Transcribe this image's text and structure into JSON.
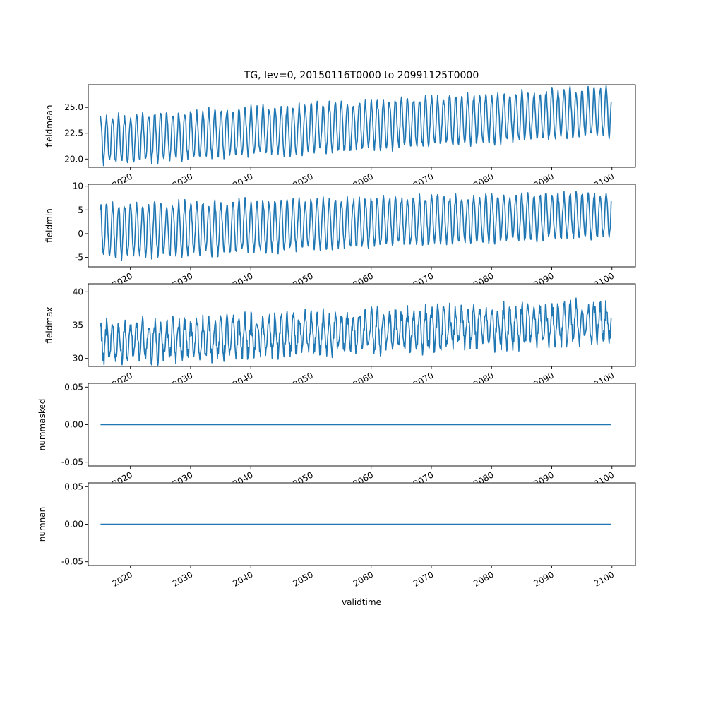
{
  "chart_data": {
    "type": "line",
    "title": "TG, lev=0, 20150116T0000 to 20991125T0000",
    "xlabel": "validtime",
    "x_ticks": [
      "2020",
      "2030",
      "2040",
      "2050",
      "2060",
      "2070",
      "2080",
      "2090",
      "2100"
    ],
    "x_range": [
      2015.04,
      2099.9
    ],
    "line_color": "#1f77b4",
    "grid": false,
    "panels": [
      {
        "ylabel": "fieldmean",
        "y_ticks": [
          "20.0",
          "22.5",
          "25.0"
        ],
        "ylim": [
          19.2,
          27.2
        ],
        "series": {
          "kind": "seasonal",
          "start": 2015.04,
          "end": 2099.9,
          "center_start": 21.8,
          "center_end": 24.6,
          "amp_start": 2.2,
          "amp_end": 2.3
        }
      },
      {
        "ylabel": "fieldmin",
        "y_ticks": [
          "-5",
          "0",
          "5",
          "10"
        ],
        "ylim": [
          -7.0,
          10.4
        ],
        "series": {
          "kind": "seasonal",
          "start": 2015.04,
          "end": 2099.9,
          "center_start": 0.5,
          "center_end": 4.0,
          "amp_start": 5.5,
          "amp_end": 4.5
        }
      },
      {
        "ylabel": "fieldmax",
        "y_ticks": [
          "30",
          "35",
          "40"
        ],
        "ylim": [
          28.8,
          41.2
        ],
        "series": {
          "kind": "seasonal",
          "start": 2015.04,
          "end": 2099.9,
          "center_start": 32.3,
          "center_end": 35.5,
          "amp_start": 2.6,
          "amp_end": 2.7
        }
      },
      {
        "ylabel": "nummasked",
        "y_ticks": [
          "-0.05",
          "0.00",
          "0.05"
        ],
        "ylim": [
          -0.055,
          0.055
        ],
        "series": {
          "kind": "constant",
          "start": 2015.04,
          "end": 2099.9,
          "value": 0.0
        }
      },
      {
        "ylabel": "numnan",
        "y_ticks": [
          "-0.05",
          "0.00",
          "0.05"
        ],
        "ylim": [
          -0.055,
          0.055
        ],
        "series": {
          "kind": "constant",
          "start": 2015.04,
          "end": 2099.9,
          "value": 0.0
        }
      }
    ]
  }
}
